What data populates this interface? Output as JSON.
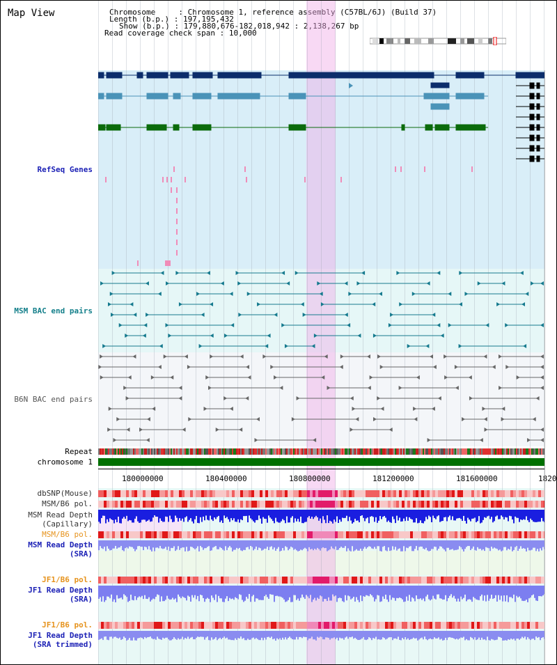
{
  "page_title": "Map View",
  "info": {
    "chromosome_key": "Chromosome",
    "chromosome_val": "Chromosome 1, reference assembly (C57BL/6J) (Build 37)",
    "length_key": "Length (b.p.)",
    "length_val": "197,195,432",
    "show_key": "Show (b.p.)",
    "show_val": "179,880,676-182,018,942 : 2,138,267 bp",
    "span_key": "Read coverage check span",
    "span_val": "10,000"
  },
  "tracks": {
    "refseq": "RefSeq Genes",
    "msm_bac": "MSM BAC end pairs",
    "b6n_bac": "B6N BAC end pairs",
    "repeat": "Repeat",
    "chromosome": "chromosome 1",
    "dbsnp": "dbSNP(Mouse)",
    "msm_pol_1": "MSM/B6 pol.",
    "msm_depth_cap": "MSM Read Depth\n(Capillary)",
    "msm_pol_2": "MSM/B6 pol.",
    "msm_depth_sra": "MSM Read Depth\n(SRA)",
    "jf1_pol_1": "JF1/B6 pol.",
    "jf1_depth_sra": "JF1 Read Depth\n(SRA)",
    "jf1_pol_2": "JF1/B6 pol.",
    "jf1_depth_trim": "JF1 Read Depth\n(SRA trimmed)"
  },
  "axis_ticks": [
    "180000000",
    "180400000",
    "180800000",
    "181200000",
    "181600000",
    "1820"
  ],
  "colors": {
    "refseq_bg": "#d9eef8",
    "bac_bg": "#e6f7f7",
    "highlight": "#f4d3ef",
    "gene_dark": "#0c2d6b",
    "gene_mid": "#4a93b8",
    "gene_green": "#0b6b0b",
    "chromosome_bar": "#007000",
    "msm_bac": "#157a8e",
    "b6n_bac": "#555555",
    "depth_blue": "#1a1ee0",
    "depth_light": "#8a8cf0"
  }
}
